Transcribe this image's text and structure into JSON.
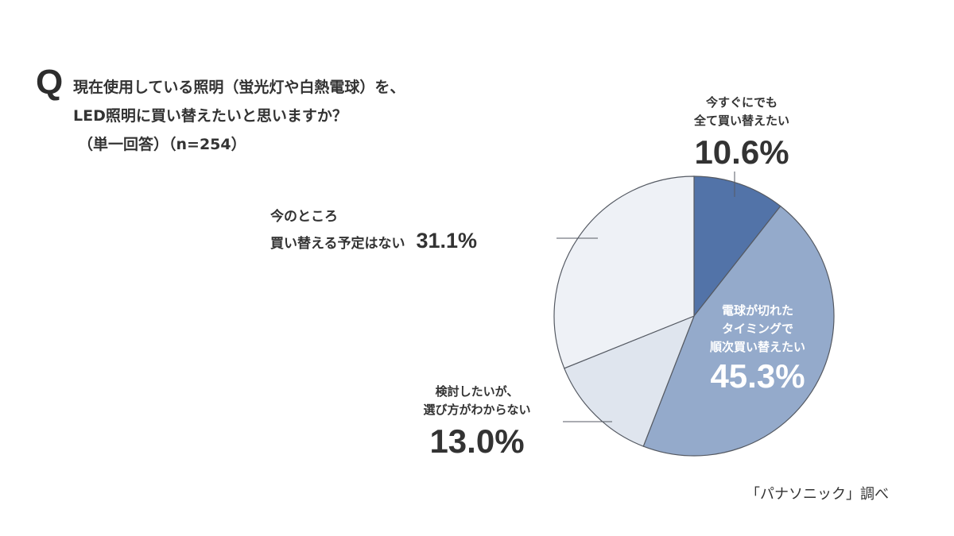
{
  "question": {
    "mark": "Q",
    "line1": "現在使用している照明（蛍光灯や白熱電球）を、",
    "line2": "LED照明に買い替えたいと思いますか？",
    "line3": "（単一回答）（n=254）"
  },
  "source": "「パナソニック」調べ",
  "colors": {
    "slice_0": "#5273a8",
    "slice_1": "#94aacb",
    "slice_2": "#dfe5ee",
    "slice_3": "#eef1f6",
    "outline": "#555a63"
  },
  "labels": [
    {
      "line1": "今すぐにでも",
      "line2": "全て買い替えたい",
      "pct": "10.6%"
    },
    {
      "line1": "電球が切れた",
      "line2": "タイミングで",
      "line3": "順次買い替えたい",
      "pct": "45.3%"
    },
    {
      "line1": "検討したいが、",
      "line2": "選び方がわからない",
      "pct": "13.0%"
    },
    {
      "line1": "今のところ",
      "line2": "買い替える予定はない",
      "pct": "31.1%"
    }
  ],
  "chart_data": {
    "type": "pie",
    "title": "現在使用している照明（蛍光灯や白熱電球）を、LED照明に買い替えたいと思いますか？（単一回答）（n=254）",
    "categories": [
      "今すぐにでも全て買い替えたい",
      "電球が切れたタイミングで順次買い替えたい",
      "検討したいが、選び方がわからない",
      "今のところ買い替える予定はない"
    ],
    "values": [
      10.6,
      45.3,
      13.0,
      31.1
    ],
    "unit": "%",
    "n": 254,
    "start_angle": "12 o'clock, clockwise",
    "source": "「パナソニック」調べ"
  }
}
